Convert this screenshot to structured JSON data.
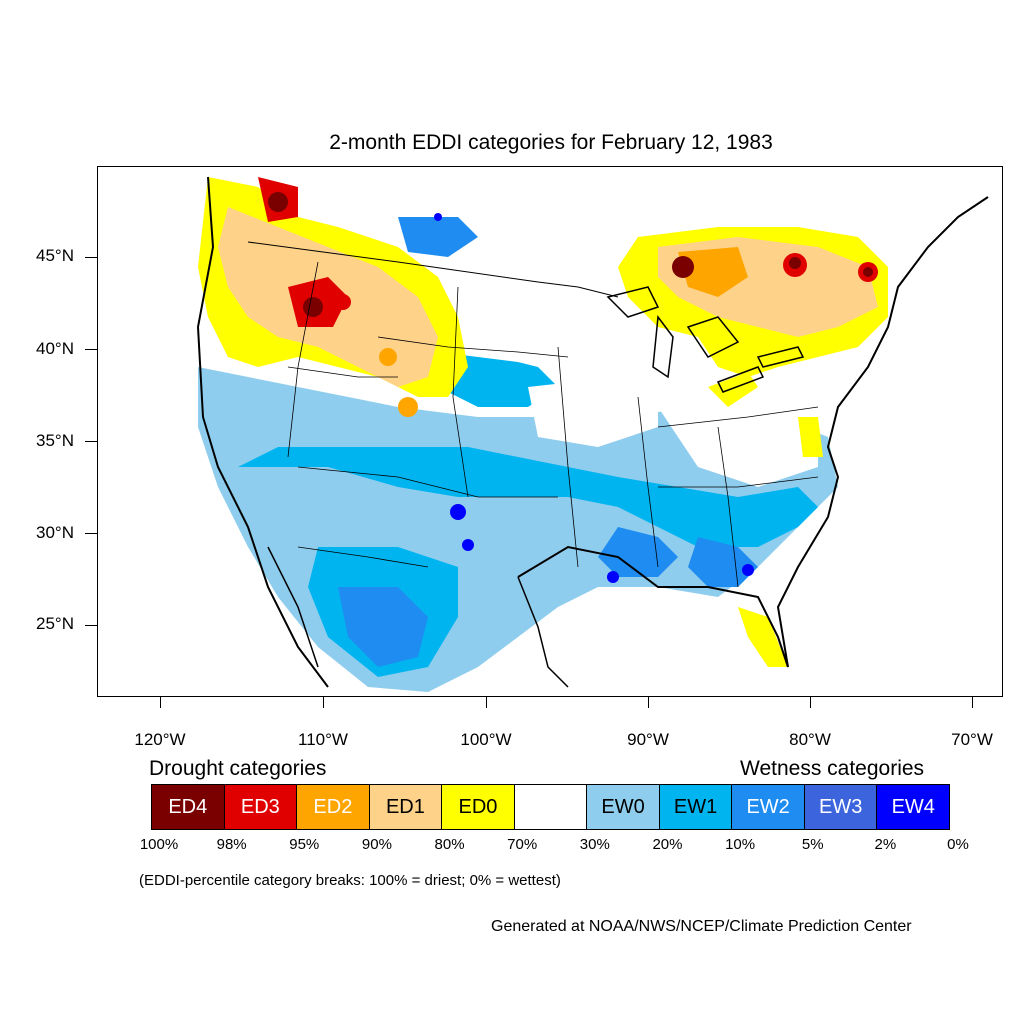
{
  "title": "2-month EDDI categories for February 12, 1983",
  "lat_labels": [
    "45°N",
    "40°N",
    "35°N",
    "30°N",
    "25°N"
  ],
  "lon_labels": [
    "120°W",
    "110°W",
    "100°W",
    "90°W",
    "80°W",
    "70°W"
  ],
  "legend": {
    "drought_heading": "Drought categories",
    "wetness_heading": "Wetness categories",
    "categories": [
      {
        "label": "ED4",
        "color": "#7a0000",
        "text_color": "#ffffff"
      },
      {
        "label": "ED3",
        "color": "#e00000",
        "text_color": "#ffffff"
      },
      {
        "label": "ED2",
        "color": "#ffa500",
        "text_color": "#ffffff"
      },
      {
        "label": "ED1",
        "color": "#ffd28a",
        "text_color": "#000000"
      },
      {
        "label": "ED0",
        "color": "#ffff00",
        "text_color": "#000000"
      },
      {
        "label": "",
        "color": "#ffffff",
        "text_color": "#000000"
      },
      {
        "label": "EW0",
        "color": "#8fcdee",
        "text_color": "#000000"
      },
      {
        "label": "EW1",
        "color": "#00b4f0",
        "text_color": "#000000"
      },
      {
        "label": "EW2",
        "color": "#1e8cf0",
        "text_color": "#ffffff"
      },
      {
        "label": "EW3",
        "color": "#3c64dc",
        "text_color": "#ffffff"
      },
      {
        "label": "EW4",
        "color": "#0000ff",
        "text_color": "#ffffff"
      }
    ],
    "breaks": [
      "100%",
      "98%",
      "95%",
      "90%",
      "80%",
      "70%",
      "30%",
      "20%",
      "10%",
      "5%",
      "2%",
      "0%"
    ]
  },
  "note": "(EDDI-percentile category breaks: 100% = driest; 0% = wettest)",
  "credit": "Generated at NOAA/NWS/NCEP/Climate Prediction Center"
}
